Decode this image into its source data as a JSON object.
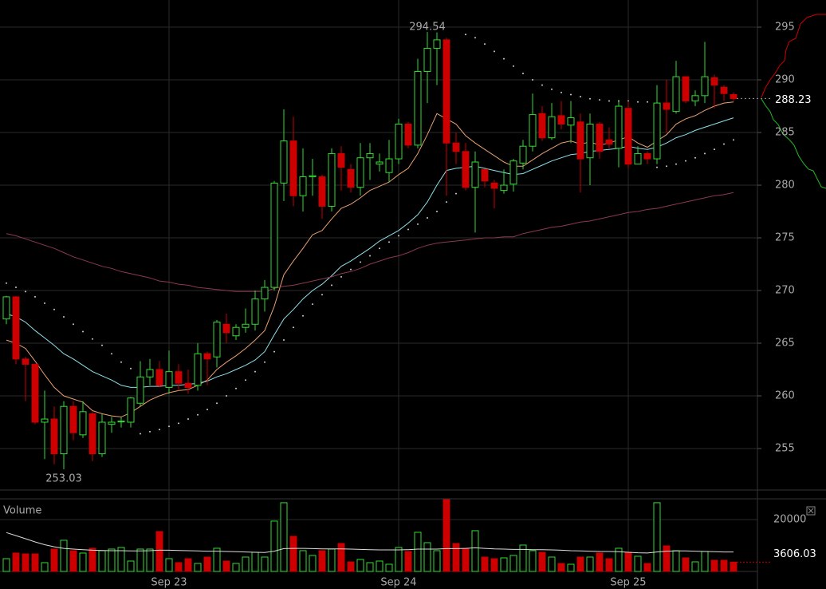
{
  "chart_data": {
    "type": "candlestick",
    "categories": [
      null,
      null,
      null,
      null,
      null,
      null,
      null,
      null,
      null,
      null,
      null,
      null,
      null,
      null,
      null,
      null,
      null,
      "Sep 23",
      null,
      null,
      null,
      null,
      null,
      null,
      null,
      null,
      null,
      null,
      null,
      null,
      null,
      null,
      null,
      null,
      null,
      null,
      null,
      null,
      null,
      null,
      null,
      "Sep 24",
      null,
      null,
      null,
      null,
      null,
      null,
      null,
      null,
      null,
      null,
      null,
      null,
      null,
      null,
      null,
      null,
      null,
      null,
      null,
      null,
      null,
      null,
      null,
      "Sep 25",
      null,
      null,
      null,
      null,
      null,
      null,
      null,
      null,
      null,
      null,
      null
    ],
    "open": [
      267.3,
      269.4,
      263.5,
      263,
      257.5,
      257.8,
      254.5,
      259,
      256.3,
      258.3,
      254.5,
      257.3,
      257.6,
      257.5,
      259.3,
      261.8,
      262.5,
      260.8,
      262.3,
      261.2,
      261,
      264,
      263.7,
      266.8,
      265.7,
      266.5,
      266.8,
      269.2,
      270.3,
      280.2,
      284.2,
      279,
      280.8,
      280.8,
      278,
      283,
      281.5,
      279.8,
      282.6,
      282,
      281.2,
      282.5,
      285.8,
      283.8,
      290.8,
      293,
      293.8,
      284,
      283.2,
      279.8,
      281.5,
      280.2,
      279.5,
      280.1,
      282.1,
      283.7,
      286.8,
      284.5,
      286.6,
      285.7,
      286,
      282.6,
      285.8,
      284.3,
      283.5,
      287.3,
      282,
      283,
      282.5,
      287.8,
      287,
      290.3,
      288,
      288.5,
      290.2,
      289.3,
      288.6
    ],
    "high": [
      269.5,
      269.5,
      263.7,
      263,
      260.5,
      259,
      259.5,
      259.5,
      259.5,
      258.5,
      258.3,
      258,
      258,
      259.9,
      263.3,
      263.5,
      263.3,
      264.3,
      263,
      262.5,
      265,
      264.2,
      267.2,
      267.8,
      266.8,
      268.3,
      270,
      271,
      280.4,
      287.2,
      286.5,
      283.5,
      282.5,
      281,
      283.5,
      283.7,
      282,
      284,
      284,
      283,
      284.3,
      286.3,
      286,
      292,
      294.54,
      294.5,
      294,
      285,
      284,
      283.2,
      281.5,
      280.5,
      281.5,
      282.5,
      284.3,
      288.7,
      287.5,
      287.8,
      288,
      288,
      286.8,
      286.8,
      286,
      285.5,
      288,
      288,
      283.7,
      283.2,
      289.5,
      290,
      291.8,
      290.3,
      289,
      293.6,
      290.5,
      289.5,
      288.8
    ],
    "low": [
      266.8,
      263,
      259.5,
      257.3,
      254,
      253.5,
      253.03,
      255.8,
      256,
      253.8,
      254.2,
      256.5,
      257,
      257,
      259,
      261,
      260.8,
      260.2,
      260.5,
      260.2,
      260.5,
      261,
      262.7,
      265,
      265.3,
      266,
      266.2,
      268,
      270,
      278.5,
      278,
      277.5,
      279,
      276.8,
      277.5,
      279.5,
      279.3,
      279,
      280.5,
      281.3,
      280.3,
      282,
      283.5,
      283.5,
      287.8,
      289.5,
      279,
      282,
      279.5,
      275.5,
      279.8,
      277.8,
      279.2,
      279.4,
      281.5,
      283.2,
      284.2,
      284.3,
      285.3,
      284,
      279.3,
      280,
      282.5,
      283.5,
      281.7,
      281.6,
      282,
      282,
      282,
      285,
      286.8,
      287.8,
      287.5,
      287.8,
      287.3,
      288,
      288
    ],
    "close": [
      269.4,
      263.5,
      263,
      257.5,
      257.8,
      254.5,
      259,
      256.5,
      258.5,
      254.5,
      257.5,
      257.5,
      257.6,
      259.8,
      261.8,
      262.5,
      261,
      262.3,
      261.2,
      260.8,
      264,
      263.5,
      267,
      266,
      266.5,
      266.8,
      269.2,
      270.3,
      280.2,
      284.2,
      279,
      280.8,
      280.9,
      278,
      283,
      281.7,
      279.8,
      282.6,
      283,
      282.2,
      282.5,
      285.8,
      283.8,
      290.8,
      293,
      293.8,
      284,
      283.2,
      279.8,
      282.2,
      280.4,
      279.7,
      280,
      282.3,
      283.7,
      286.7,
      284.5,
      286.5,
      285.8,
      286.4,
      282.5,
      285.8,
      283.2,
      283.9,
      287.5,
      282,
      283,
      282.5,
      287.8,
      287.2,
      290.3,
      288,
      288.5,
      290.3,
      289.5,
      288.7,
      288.23
    ],
    "up_color": "#33dd33",
    "down_color": "#cc0000",
    "ylim": [
      251.06,
      297.58
    ],
    "yticks": [
      255,
      260,
      265,
      270,
      275,
      280,
      285,
      290,
      295
    ],
    "grid": true,
    "lines": [
      {
        "color": "#e8a070",
        "values": [
          265.3,
          265,
          264.5,
          263.3,
          262,
          260.8,
          260,
          259.7,
          259.4,
          258.6,
          258.3,
          258.1,
          258,
          258.4,
          259,
          259.6,
          260,
          260.3,
          260.5,
          260.6,
          261,
          261.5,
          262.5,
          263.2,
          263.8,
          264.5,
          265.3,
          266.2,
          268.5,
          271.5,
          272.8,
          274,
          275.3,
          275.7,
          276.8,
          277.8,
          278.2,
          278.8,
          279.5,
          279.9,
          280.3,
          281,
          281.6,
          283,
          284.8,
          286.8,
          286.3,
          285.8,
          284.7,
          284,
          283.4,
          282.8,
          282.2,
          281.8,
          281.8,
          282.4,
          283,
          283.5,
          284,
          284.2,
          283.9,
          284.1,
          283.8,
          284,
          284.3,
          284.6,
          284,
          283.6,
          284.2,
          284.8,
          285.8,
          286.3,
          286.6,
          287.1,
          287.5,
          287.8,
          287.9
        ]
      },
      {
        "color": "#8fe0ea",
        "values": [
          267.8,
          267.5,
          267,
          266.2,
          265.5,
          264.8,
          264,
          263.5,
          262.9,
          262.3,
          261.9,
          261.5,
          261,
          260.8,
          260.8,
          260.9,
          260.9,
          261,
          261,
          261.1,
          261.2,
          261.4,
          261.8,
          262.1,
          262.5,
          262.9,
          263.4,
          264.2,
          265.8,
          267.3,
          268.2,
          269.2,
          270,
          270.6,
          271.4,
          272.3,
          272.8,
          273.4,
          274,
          274.7,
          275.2,
          275.7,
          276.4,
          277.2,
          278.4,
          280,
          281.4,
          281.6,
          281.7,
          281.8,
          281.6,
          281.4,
          281.2,
          281,
          281.1,
          281.5,
          281.9,
          282.3,
          282.6,
          282.9,
          283,
          283.2,
          283.3,
          283.4,
          283.5,
          283.7,
          283.5,
          283.4,
          283.6,
          284,
          284.5,
          284.8,
          285.2,
          285.5,
          285.8,
          286.1,
          286.4
        ]
      },
      {
        "color": "#8a3a4c",
        "values": [
          275.4,
          275.2,
          274.9,
          274.6,
          274.3,
          274,
          273.6,
          273.2,
          272.9,
          272.6,
          272.3,
          272.1,
          271.8,
          271.6,
          271.4,
          271.2,
          270.9,
          270.8,
          270.6,
          270.5,
          270.3,
          270.2,
          270.1,
          270,
          269.9,
          269.9,
          269.9,
          269.9,
          270.2,
          270.4,
          270.5,
          270.7,
          270.9,
          271.1,
          271.3,
          271.6,
          271.8,
          272.1,
          272.5,
          272.8,
          273.1,
          273.3,
          273.6,
          274,
          274.3,
          274.5,
          274.6,
          274.7,
          274.8,
          274.9,
          275,
          275,
          275.1,
          275.1,
          275.4,
          275.6,
          275.8,
          276,
          276.1,
          276.3,
          276.5,
          276.6,
          276.8,
          277,
          277.2,
          277.4,
          277.5,
          277.7,
          277.8,
          278,
          278.2,
          278.4,
          278.6,
          278.8,
          279,
          279.1,
          279.3
        ]
      }
    ],
    "sar": {
      "color": "#cccccc",
      "values": [
        270.7,
        270.3,
        269.9,
        269.4,
        268.8,
        268.2,
        267.5,
        266.8,
        266.1,
        265.4,
        264.8,
        264,
        263.2,
        262.6,
        256.4,
        256.6,
        256.8,
        257.1,
        257.4,
        257.8,
        258.2,
        258.7,
        259.3,
        260,
        260.7,
        261.5,
        262.3,
        263.2,
        264.2,
        265.3,
        266.5,
        267.6,
        268.7,
        269.6,
        270.5,
        271.3,
        272,
        272.7,
        273.3,
        274,
        274.6,
        275.2,
        275.8,
        276.3,
        276.9,
        277.5,
        278.4,
        279.2,
        294.3,
        294,
        293.4,
        292.7,
        292,
        291.3,
        290.6,
        290,
        289.5,
        289.1,
        288.8,
        288.6,
        288.4,
        288.2,
        288.1,
        288,
        288,
        288,
        287.9,
        287.9,
        281.7,
        281.8,
        282,
        282.3,
        282.6,
        283,
        283.4,
        283.9,
        284.3
      ]
    },
    "volume": {
      "label": "Volume",
      "values": [
        4928,
        7084,
        6776,
        6776,
        3388,
        8624,
        12012,
        8008,
        7084,
        8932,
        8008,
        8624,
        9240,
        4004,
        8624,
        8624,
        15400,
        4928,
        3388,
        4928,
        3080,
        5544,
        8932,
        4004,
        3080,
        5544,
        7392,
        5544,
        19404,
        26488,
        13552,
        8008,
        6160,
        8008,
        8624,
        10780,
        3696,
        4620,
        3388,
        4004,
        2772,
        9240,
        7700,
        15092,
        11088,
        8008,
        27700,
        10780,
        8932,
        15708,
        5544,
        4928,
        5236,
        6160,
        10164,
        8008,
        7392,
        5544,
        3080,
        2772,
        5544,
        5544,
        7084,
        4928,
        8932,
        7392,
        5852,
        3080,
        26488,
        9856,
        8008,
        5236,
        3696,
        7700,
        4312,
        4312,
        3606.03
      ],
      "ma": {
        "color": "#dddddd",
        "values": [
          15000,
          13800,
          12600,
          11400,
          10300,
          9500,
          8900,
          8600,
          8400,
          8200,
          8100,
          8000,
          8000,
          7900,
          7900,
          8000,
          8200,
          8200,
          8100,
          8000,
          7900,
          7800,
          7800,
          7700,
          7600,
          7500,
          7400,
          7300,
          7800,
          8800,
          8900,
          8900,
          8800,
          8700,
          8700,
          8700,
          8600,
          8500,
          8400,
          8300,
          8300,
          8300,
          8400,
          8600,
          8600,
          8600,
          8800,
          8800,
          8900,
          9100,
          8900,
          8700,
          8600,
          8500,
          8500,
          8400,
          8400,
          8300,
          8200,
          8000,
          7900,
          7800,
          7700,
          7700,
          7600,
          7400,
          7200,
          7100,
          7500,
          7800,
          7900,
          7900,
          7800,
          7700,
          7600,
          7500,
          7500
        ]
      },
      "ylim": [
        0,
        28000
      ],
      "yticks": [
        20000
      ]
    }
  }
}
